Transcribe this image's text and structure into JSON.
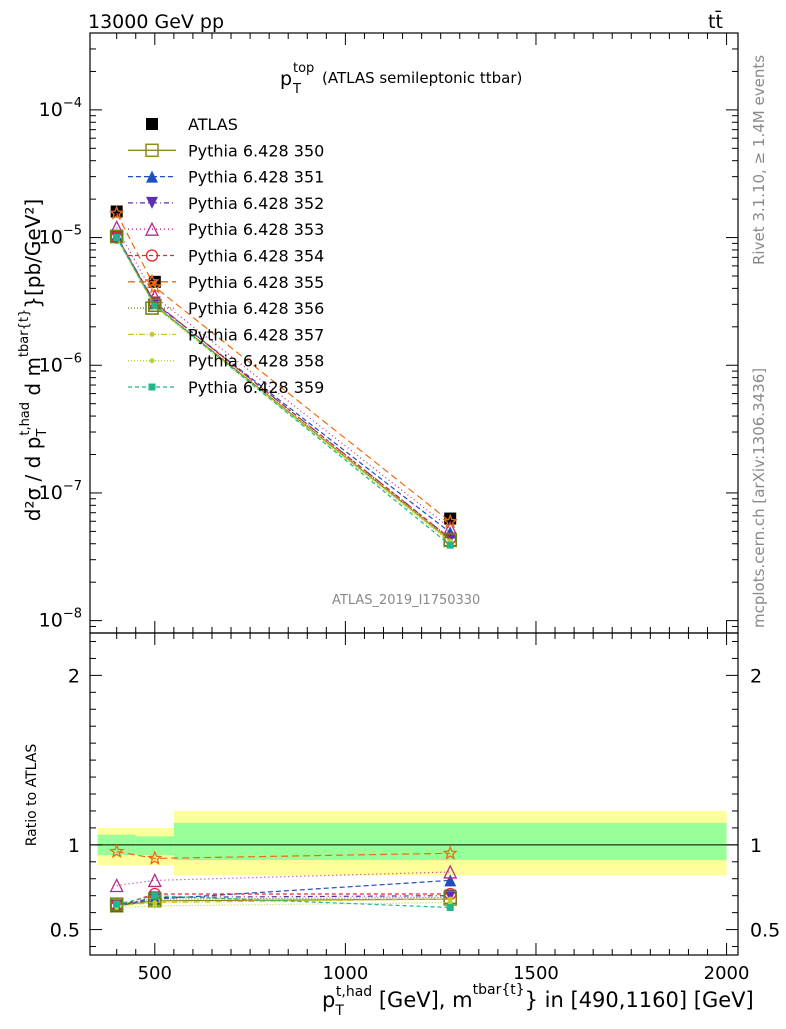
{
  "header": {
    "energy_label": "13000 GeV pp",
    "process_label": "tt̄",
    "plot_title_main": "p",
    "plot_title_sup": "top",
    "plot_title_sub": "T",
    "plot_title_rest": "(ATLAS semileptonic ttbar)",
    "watermark": "ATLAS_2019_I1750330",
    "side_top": "Rivet 3.1.10, ≥ 1.4M events",
    "side_bottom": "mcplots.cern.ch [arXiv:1306.3436]"
  },
  "colors": {
    "ATLAS": "#000000",
    "350": "#8c8c1e",
    "351": "#1f4fbf",
    "352": "#5b2fb0",
    "353": "#b5298c",
    "354": "#e0282e",
    "355": "#f06a10",
    "356": "#6f7f12",
    "357": "#c8c81e",
    "358": "#b2d634",
    "359": "#1fb88a",
    "band_inner": "#99ff99",
    "band_outer": "#ffff99"
  },
  "chart_data": [
    {
      "type": "line",
      "panel": "main",
      "ylabel": "d²σ / d p_T^{t,had} d m^{tbar{t}}[pb/GeV²]",
      "yscale": "log",
      "ylim": [
        8e-09,
        0.0004
      ],
      "xlim": [
        330,
        2030
      ],
      "yticks": [
        "10^{-8}",
        "10^{-7}",
        "10^{-6}",
        "10^{-5}",
        "10^{-4}"
      ],
      "x": [
        400,
        500,
        1275
      ],
      "series": [
        {
          "name": "ATLAS",
          "key": "ATLAS",
          "marker": "square-filled",
          "dash": "",
          "values": [
            1.6e-05,
            4.5e-06,
            6.3e-08
          ]
        },
        {
          "name": "Pythia 6.428 350",
          "key": "350",
          "marker": "square-open",
          "dash": "",
          "values": [
            1.02e-05,
            2.95e-06,
            4.25e-08
          ]
        },
        {
          "name": "Pythia 6.428 351",
          "key": "351",
          "marker": "triangle-up-filled",
          "dash": "5,3",
          "values": [
            1.03e-05,
            3.05e-06,
            4.9e-08
          ]
        },
        {
          "name": "Pythia 6.428 352",
          "key": "352",
          "marker": "triangle-down-filled",
          "dash": "5,3,1,3",
          "values": [
            1.02e-05,
            3.1e-06,
            4.4e-08
          ]
        },
        {
          "name": "Pythia 6.428 353",
          "key": "353",
          "marker": "triangle-up-open",
          "dash": "1,3",
          "values": [
            1.2e-05,
            3.45e-06,
            5.3e-08
          ]
        },
        {
          "name": "Pythia 6.428 354",
          "key": "354",
          "marker": "circle-open",
          "dash": "4,3",
          "values": [
            1e-05,
            3.1e-06,
            4.4e-08
          ]
        },
        {
          "name": "Pythia 6.428 355",
          "key": "355",
          "marker": "star-open",
          "dash": "7,4",
          "values": [
            1.55e-05,
            4.1e-06,
            5.95e-08
          ]
        },
        {
          "name": "Pythia 6.428 356",
          "key": "356",
          "marker": "square-open",
          "dash": "1,2",
          "values": [
            1.02e-05,
            2.95e-06,
            4.3e-08
          ]
        },
        {
          "name": "Pythia 6.428 357",
          "key": "357",
          "marker": "dot",
          "dash": "6,2,1,2",
          "values": [
            1e-05,
            2.9e-06,
            4.2e-08
          ]
        },
        {
          "name": "Pythia 6.428 358",
          "key": "358",
          "marker": "dot",
          "dash": "1,2",
          "values": [
            1e-05,
            2.85e-06,
            4.1e-08
          ]
        },
        {
          "name": "Pythia 6.428 359",
          "key": "359",
          "marker": "square-small",
          "dash": "4,3",
          "values": [
            1e-05,
            2.95e-06,
            3.9e-08
          ]
        }
      ]
    },
    {
      "type": "line",
      "panel": "ratio",
      "ylabel": "Ratio to ATLAS",
      "ylim": [
        0.35,
        2.25
      ],
      "yticks": [
        0.5,
        1,
        2
      ],
      "xticks": [
        500,
        1000,
        1500,
        2000
      ],
      "xlabel": "p_T^{t,had} [GeV], m^{tbar{t}} in [490,1160] [GeV]",
      "bands": [
        {
          "x0": 350,
          "x1": 450,
          "inner": [
            0.94,
            1.06
          ],
          "outer": [
            0.88,
            1.1
          ]
        },
        {
          "x0": 450,
          "x1": 550,
          "inner": [
            0.94,
            1.05
          ],
          "outer": [
            0.88,
            1.1
          ]
        },
        {
          "x0": 550,
          "x1": 2000,
          "inner": [
            0.91,
            1.13
          ],
          "outer": [
            0.82,
            1.2
          ]
        }
      ],
      "x": [
        400,
        500,
        1275
      ],
      "series": [
        {
          "key": "350",
          "values": [
            0.64,
            0.67,
            0.68
          ]
        },
        {
          "key": "351",
          "values": [
            0.64,
            0.68,
            0.79
          ]
        },
        {
          "key": "352",
          "values": [
            0.64,
            0.69,
            0.7
          ]
        },
        {
          "key": "353",
          "values": [
            0.76,
            0.79,
            0.84
          ]
        },
        {
          "key": "354",
          "values": [
            0.64,
            0.71,
            0.71
          ]
        },
        {
          "key": "355",
          "values": [
            0.96,
            0.92,
            0.95
          ]
        },
        {
          "key": "356",
          "values": [
            0.65,
            0.68,
            0.69
          ]
        },
        {
          "key": "357",
          "values": [
            0.64,
            0.66,
            0.68
          ]
        },
        {
          "key": "358",
          "values": [
            0.63,
            0.64,
            0.66
          ]
        },
        {
          "key": "359",
          "values": [
            0.65,
            0.7,
            0.63
          ]
        }
      ]
    }
  ]
}
